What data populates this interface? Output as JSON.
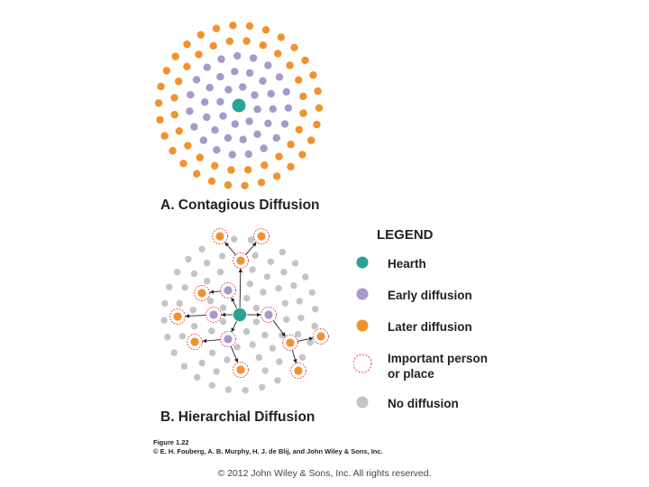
{
  "colors": {
    "hearth": "#2aa296",
    "early": "#a898cc",
    "later": "#f0922e",
    "important": "#e0404a",
    "none": "#c4c4c4",
    "arrow": "#222222"
  },
  "diagram_a": {
    "title": "A. Contagious Diffusion"
  },
  "diagram_b": {
    "title": "B. Hierarchial Diffusion"
  },
  "legend": {
    "title": "LEGEND",
    "items": [
      {
        "key": "hearth",
        "label": "Hearth"
      },
      {
        "key": "early",
        "label": "Early diffusion"
      },
      {
        "key": "later",
        "label": "Later diffusion"
      },
      {
        "key": "important",
        "label": "Important person\nor place"
      },
      {
        "key": "none",
        "label": "No diffusion"
      }
    ]
  },
  "caption": {
    "figure": "Figure 1.22",
    "credit": "© E. H. Fouberg, A. B. Murphy, H. J. de Blij, and John Wiley & Sons, Inc."
  },
  "footer": {
    "copyright": "© 2012 John Wiley & Sons, Inc. All rights reserved."
  }
}
